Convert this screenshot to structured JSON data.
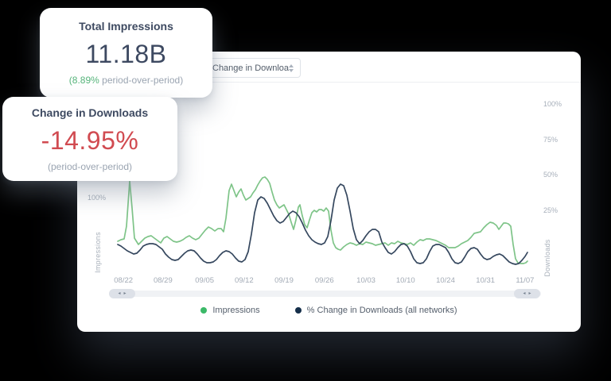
{
  "page": {
    "background": "#000000",
    "panel_background": "#ffffff"
  },
  "kpi_cards": [
    {
      "title": "Total Impressions",
      "value": "11.18B",
      "sub_highlight": "(8.89%",
      "sub_rest": " period-over-period)",
      "value_color": "#3d4961",
      "highlight_color": "#55b47a"
    },
    {
      "title": "Change in Downloads",
      "value": "-14.95%",
      "sub_highlight": "",
      "sub_rest": "(period-over-period)",
      "value_color": "#d14b51",
      "highlight_color": ""
    }
  ],
  "header": {
    "metric_select_value": "Change in Downloads"
  },
  "scrollbar": {
    "left_glyph": "◂",
    "right_glyph": "▸"
  },
  "chart_data": {
    "type": "line",
    "title": "",
    "x_label": "",
    "grid": false,
    "legend_position": "bottom-center",
    "x_labels": [
      {
        "text": "08/22",
        "pos": 2.9
      },
      {
        "text": "08/29",
        "pos": 12.4
      },
      {
        "text": "09/05",
        "pos": 22.4
      },
      {
        "text": "09/12",
        "pos": 31.9
      },
      {
        "text": "09/19",
        "pos": 41.5
      },
      {
        "text": "09/26",
        "pos": 51.2
      },
      {
        "text": "10/03",
        "pos": 61.2
      },
      {
        "text": "10/10",
        "pos": 70.7
      },
      {
        "text": "10/24",
        "pos": 80.3
      },
      {
        "text": "10/31",
        "pos": 89.9
      },
      {
        "text": "11/07",
        "pos": 99.4
      }
    ],
    "left_axis": {
      "title": "Impressions",
      "ticks": [
        {
          "label": "100%",
          "y": 134
        }
      ]
    },
    "right_axis": {
      "title": "Downloads",
      "ticks": [
        {
          "label": "100%",
          "y": 16
        },
        {
          "label": "75%",
          "y": 61
        },
        {
          "label": "50%",
          "y": 105
        },
        {
          "label": "25%",
          "y": 150
        }
      ]
    },
    "plot_viewbox": [
      0,
      0,
      515,
      235
    ],
    "series": [
      {
        "id": "impressions",
        "name": "Impressions",
        "color": "#7ec488",
        "dot_color": "#3bb968",
        "axis": "left",
        "points": [
          [
            0,
            194
          ],
          [
            4,
            192
          ],
          [
            8,
            191
          ],
          [
            11,
            175
          ],
          [
            15,
            118
          ],
          [
            18,
            152
          ],
          [
            21,
            190
          ],
          [
            26,
            198
          ],
          [
            30,
            194
          ],
          [
            34,
            190
          ],
          [
            38,
            188
          ],
          [
            42,
            187
          ],
          [
            46,
            190
          ],
          [
            50,
            193
          ],
          [
            54,
            196
          ],
          [
            58,
            190
          ],
          [
            62,
            188
          ],
          [
            66,
            191
          ],
          [
            70,
            194
          ],
          [
            74,
            195
          ],
          [
            78,
            194
          ],
          [
            82,
            192
          ],
          [
            86,
            189
          ],
          [
            90,
            187
          ],
          [
            94,
            190
          ],
          [
            98,
            192
          ],
          [
            102,
            190
          ],
          [
            106,
            185
          ],
          [
            110,
            180
          ],
          [
            114,
            176
          ],
          [
            118,
            178
          ],
          [
            122,
            181
          ],
          [
            126,
            178
          ],
          [
            130,
            178
          ],
          [
            133,
            182
          ],
          [
            136,
            165
          ],
          [
            140,
            130
          ],
          [
            143,
            122
          ],
          [
            146,
            130
          ],
          [
            149,
            138
          ],
          [
            152,
            132
          ],
          [
            155,
            128
          ],
          [
            158,
            136
          ],
          [
            161,
            142
          ],
          [
            164,
            140
          ],
          [
            167,
            138
          ],
          [
            170,
            133
          ],
          [
            173,
            129
          ],
          [
            176,
            123
          ],
          [
            179,
            118
          ],
          [
            182,
            114
          ],
          [
            185,
            113
          ],
          [
            188,
            116
          ],
          [
            191,
            121
          ],
          [
            194,
            132
          ],
          [
            197,
            142
          ],
          [
            200,
            148
          ],
          [
            203,
            152
          ],
          [
            206,
            150
          ],
          [
            209,
            148
          ],
          [
            212,
            154
          ],
          [
            215,
            160
          ],
          [
            218,
            170
          ],
          [
            221,
            179
          ],
          [
            224,
            167
          ],
          [
            227,
            151
          ],
          [
            229,
            148
          ],
          [
            232,
            162
          ],
          [
            235,
            173
          ],
          [
            238,
            177
          ],
          [
            241,
            167
          ],
          [
            244,
            158
          ],
          [
            247,
            155
          ],
          [
            250,
            157
          ],
          [
            253,
            154
          ],
          [
            256,
            154
          ],
          [
            259,
            156
          ],
          [
            262,
            152
          ],
          [
            265,
            156
          ],
          [
            268,
            180
          ],
          [
            271,
            196
          ],
          [
            274,
            202
          ],
          [
            277,
            204
          ],
          [
            280,
            205
          ],
          [
            284,
            201
          ],
          [
            288,
            198
          ],
          [
            292,
            196
          ],
          [
            296,
            197
          ],
          [
            300,
            199
          ],
          [
            304,
            197
          ],
          [
            308,
            198
          ],
          [
            312,
            195
          ],
          [
            316,
            196
          ],
          [
            320,
            197
          ],
          [
            324,
            199
          ],
          [
            328,
            198
          ],
          [
            332,
            197
          ],
          [
            336,
            196
          ],
          [
            340,
            199
          ],
          [
            344,
            196
          ],
          [
            348,
            197
          ],
          [
            352,
            194
          ],
          [
            356,
            196
          ],
          [
            360,
            197
          ],
          [
            364,
            198
          ],
          [
            368,
            196
          ],
          [
            372,
            199
          ],
          [
            376,
            195
          ],
          [
            380,
            192
          ],
          [
            384,
            193
          ],
          [
            388,
            191
          ],
          [
            392,
            191
          ],
          [
            396,
            192
          ],
          [
            400,
            193
          ],
          [
            404,
            195
          ],
          [
            408,
            197
          ],
          [
            412,
            199
          ],
          [
            416,
            202
          ],
          [
            420,
            202
          ],
          [
            424,
            202
          ],
          [
            428,
            200
          ],
          [
            432,
            197
          ],
          [
            436,
            195
          ],
          [
            440,
            193
          ],
          [
            444,
            189
          ],
          [
            448,
            184
          ],
          [
            452,
            183
          ],
          [
            456,
            182
          ],
          [
            460,
            177
          ],
          [
            464,
            173
          ],
          [
            468,
            170
          ],
          [
            472,
            171
          ],
          [
            476,
            174
          ],
          [
            479,
            179
          ],
          [
            482,
            175
          ],
          [
            485,
            171
          ],
          [
            488,
            171
          ],
          [
            491,
            172
          ],
          [
            494,
            175
          ],
          [
            497,
            198
          ],
          [
            500,
            216
          ],
          [
            503,
            221
          ],
          [
            506,
            222
          ],
          [
            510,
            222
          ],
          [
            513,
            221
          ],
          [
            515,
            219
          ]
        ]
      },
      {
        "id": "downloads-change",
        "name": "% Change in Downloads (all networks)",
        "color": "#35475e",
        "dot_color": "#152f4a",
        "axis": "right",
        "points": [
          [
            0,
            198
          ],
          [
            4,
            200
          ],
          [
            8,
            203
          ],
          [
            12,
            206
          ],
          [
            16,
            208
          ],
          [
            20,
            210
          ],
          [
            24,
            209
          ],
          [
            28,
            205
          ],
          [
            32,
            200
          ],
          [
            36,
            198
          ],
          [
            40,
            197
          ],
          [
            44,
            197
          ],
          [
            48,
            198
          ],
          [
            52,
            201
          ],
          [
            56,
            204
          ],
          [
            60,
            210
          ],
          [
            64,
            214
          ],
          [
            68,
            217
          ],
          [
            72,
            218
          ],
          [
            76,
            217
          ],
          [
            80,
            213
          ],
          [
            84,
            209
          ],
          [
            88,
            206
          ],
          [
            92,
            205
          ],
          [
            96,
            206
          ],
          [
            100,
            210
          ],
          [
            104,
            215
          ],
          [
            108,
            219
          ],
          [
            112,
            221
          ],
          [
            116,
            221
          ],
          [
            120,
            220
          ],
          [
            124,
            217
          ],
          [
            128,
            212
          ],
          [
            132,
            208
          ],
          [
            136,
            206
          ],
          [
            140,
            207
          ],
          [
            144,
            210
          ],
          [
            148,
            215
          ],
          [
            152,
            219
          ],
          [
            156,
            220
          ],
          [
            160,
            217
          ],
          [
            164,
            207
          ],
          [
            168,
            185
          ],
          [
            172,
            158
          ],
          [
            176,
            142
          ],
          [
            180,
            138
          ],
          [
            184,
            140
          ],
          [
            188,
            146
          ],
          [
            192,
            154
          ],
          [
            196,
            162
          ],
          [
            200,
            168
          ],
          [
            204,
            171
          ],
          [
            208,
            169
          ],
          [
            212,
            164
          ],
          [
            216,
            159
          ],
          [
            220,
            156
          ],
          [
            224,
            158
          ],
          [
            228,
            163
          ],
          [
            232,
            171
          ],
          [
            236,
            180
          ],
          [
            240,
            187
          ],
          [
            244,
            192
          ],
          [
            248,
            195
          ],
          [
            252,
            197
          ],
          [
            256,
            198
          ],
          [
            260,
            196
          ],
          [
            264,
            188
          ],
          [
            268,
            168
          ],
          [
            272,
            142
          ],
          [
            276,
            127
          ],
          [
            280,
            122
          ],
          [
            284,
            124
          ],
          [
            288,
            136
          ],
          [
            292,
            156
          ],
          [
            296,
            178
          ],
          [
            300,
            192
          ],
          [
            304,
            197
          ],
          [
            308,
            193
          ],
          [
            312,
            187
          ],
          [
            316,
            182
          ],
          [
            320,
            179
          ],
          [
            324,
            179
          ],
          [
            328,
            182
          ],
          [
            332,
            195
          ],
          [
            336,
            202
          ],
          [
            340,
            208
          ],
          [
            344,
            210
          ],
          [
            348,
            207
          ],
          [
            352,
            202
          ],
          [
            356,
            198
          ],
          [
            360,
            197
          ],
          [
            364,
            200
          ],
          [
            368,
            207
          ],
          [
            372,
            216
          ],
          [
            376,
            221
          ],
          [
            380,
            222
          ],
          [
            384,
            221
          ],
          [
            388,
            216
          ],
          [
            392,
            207
          ],
          [
            396,
            200
          ],
          [
            400,
            198
          ],
          [
            404,
            198
          ],
          [
            408,
            200
          ],
          [
            412,
            202
          ],
          [
            416,
            208
          ],
          [
            420,
            216
          ],
          [
            424,
            221
          ],
          [
            428,
            222
          ],
          [
            432,
            220
          ],
          [
            436,
            214
          ],
          [
            440,
            207
          ],
          [
            444,
            203
          ],
          [
            448,
            202
          ],
          [
            452,
            204
          ],
          [
            456,
            210
          ],
          [
            460,
            215
          ],
          [
            464,
            217
          ],
          [
            468,
            216
          ],
          [
            472,
            213
          ],
          [
            476,
            211
          ],
          [
            480,
            210
          ],
          [
            484,
            212
          ],
          [
            488,
            216
          ],
          [
            492,
            220
          ],
          [
            496,
            222
          ],
          [
            500,
            223
          ],
          [
            504,
            222
          ],
          [
            508,
            218
          ],
          [
            512,
            213
          ],
          [
            515,
            208
          ]
        ]
      }
    ]
  }
}
